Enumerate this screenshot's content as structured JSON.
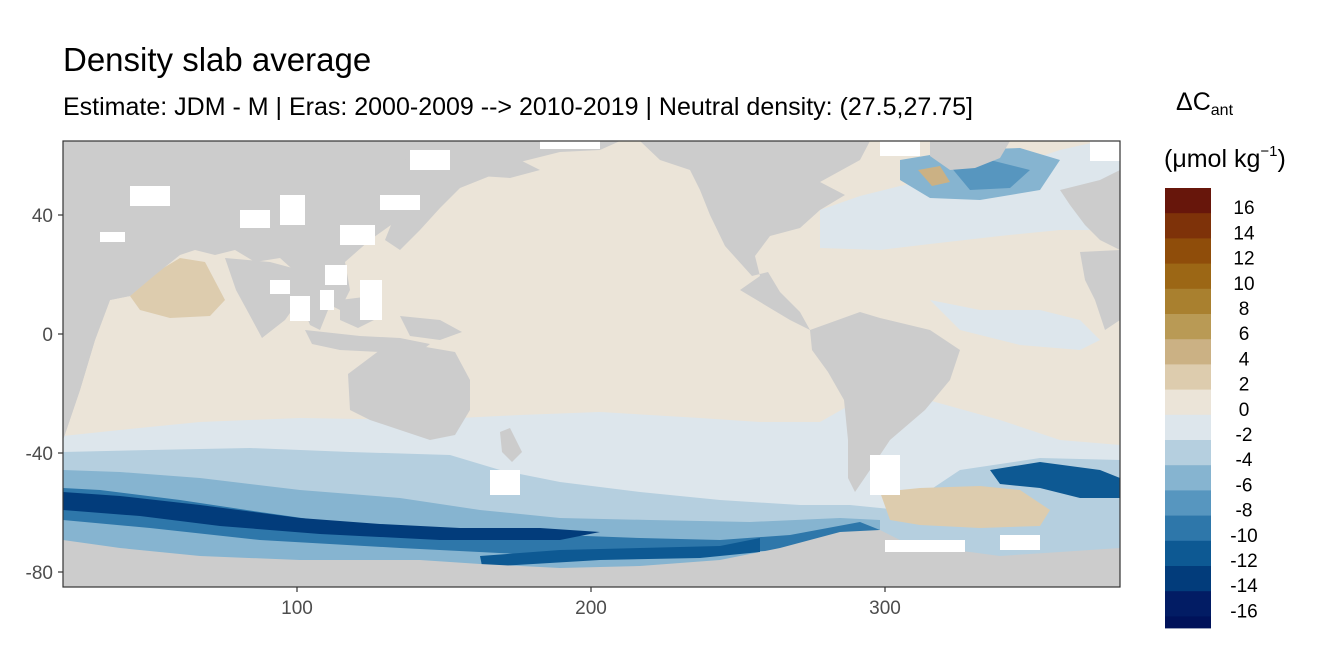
{
  "title": "Density slab average",
  "subtitle": "Estimate: JDM - M | Eras: 2000-2009 --> 2010-2019 | Neutral density: (27.5,27.75]",
  "legend": {
    "title_symbol": "ΔC",
    "title_subscript": "ant",
    "unit_open": "(μmol kg",
    "unit_superscript": "−1",
    "unit_close": ")",
    "bins": [
      {
        "label": "16",
        "color": "#67160b"
      },
      {
        "label": "14",
        "color": "#7e3209"
      },
      {
        "label": "12",
        "color": "#8f4d0a"
      },
      {
        "label": "10",
        "color": "#9c6715"
      },
      {
        "label": "8",
        "color": "#a9802f"
      },
      {
        "label": "6",
        "color": "#b99a55"
      },
      {
        "label": "4",
        "color": "#cbb184"
      },
      {
        "label": "2",
        "color": "#ddccae"
      },
      {
        "label": "0",
        "color": "#ebe4d8"
      },
      {
        "label": "-2",
        "color": "#dde6ec"
      },
      {
        "label": "-4",
        "color": "#b5cfdf"
      },
      {
        "label": "-6",
        "color": "#86b4d0"
      },
      {
        "label": "-8",
        "color": "#5796bf"
      },
      {
        "label": "-10",
        "color": "#2e77aa"
      },
      {
        "label": "-12",
        "color": "#0d5993"
      },
      {
        "label": "-14",
        "color": "#023c7b"
      },
      {
        "label": "-16",
        "color": "#021c64"
      }
    ],
    "bottom_color": "#00125a"
  },
  "map": {
    "x_ticks": [
      "100",
      "200",
      "300"
    ],
    "y_ticks": [
      "40",
      "0",
      "-40",
      "-80"
    ],
    "land_color": "#cccccc",
    "missing_color": "#ffffff"
  },
  "chart_data": {
    "type": "heatmap",
    "title": "Density slab average",
    "subtitle": "Estimate: JDM - M | Eras: 2000-2009 --> 2010-2019 | Neutral density: (27.5,27.75]",
    "xlabel": "",
    "ylabel": "",
    "xlim": [
      20,
      380
    ],
    "ylim": [
      -85,
      65
    ],
    "x_ticks": [
      100,
      200,
      300
    ],
    "y_ticks": [
      40,
      0,
      -40,
      -80
    ],
    "legend_title": "ΔC_ant (μmol kg−1)",
    "legend_placement": "right",
    "color_breaks": [
      16,
      14,
      12,
      10,
      8,
      6,
      4,
      2,
      0,
      -2,
      -4,
      -6,
      -8,
      -10,
      -12,
      -14,
      -16
    ]
  }
}
